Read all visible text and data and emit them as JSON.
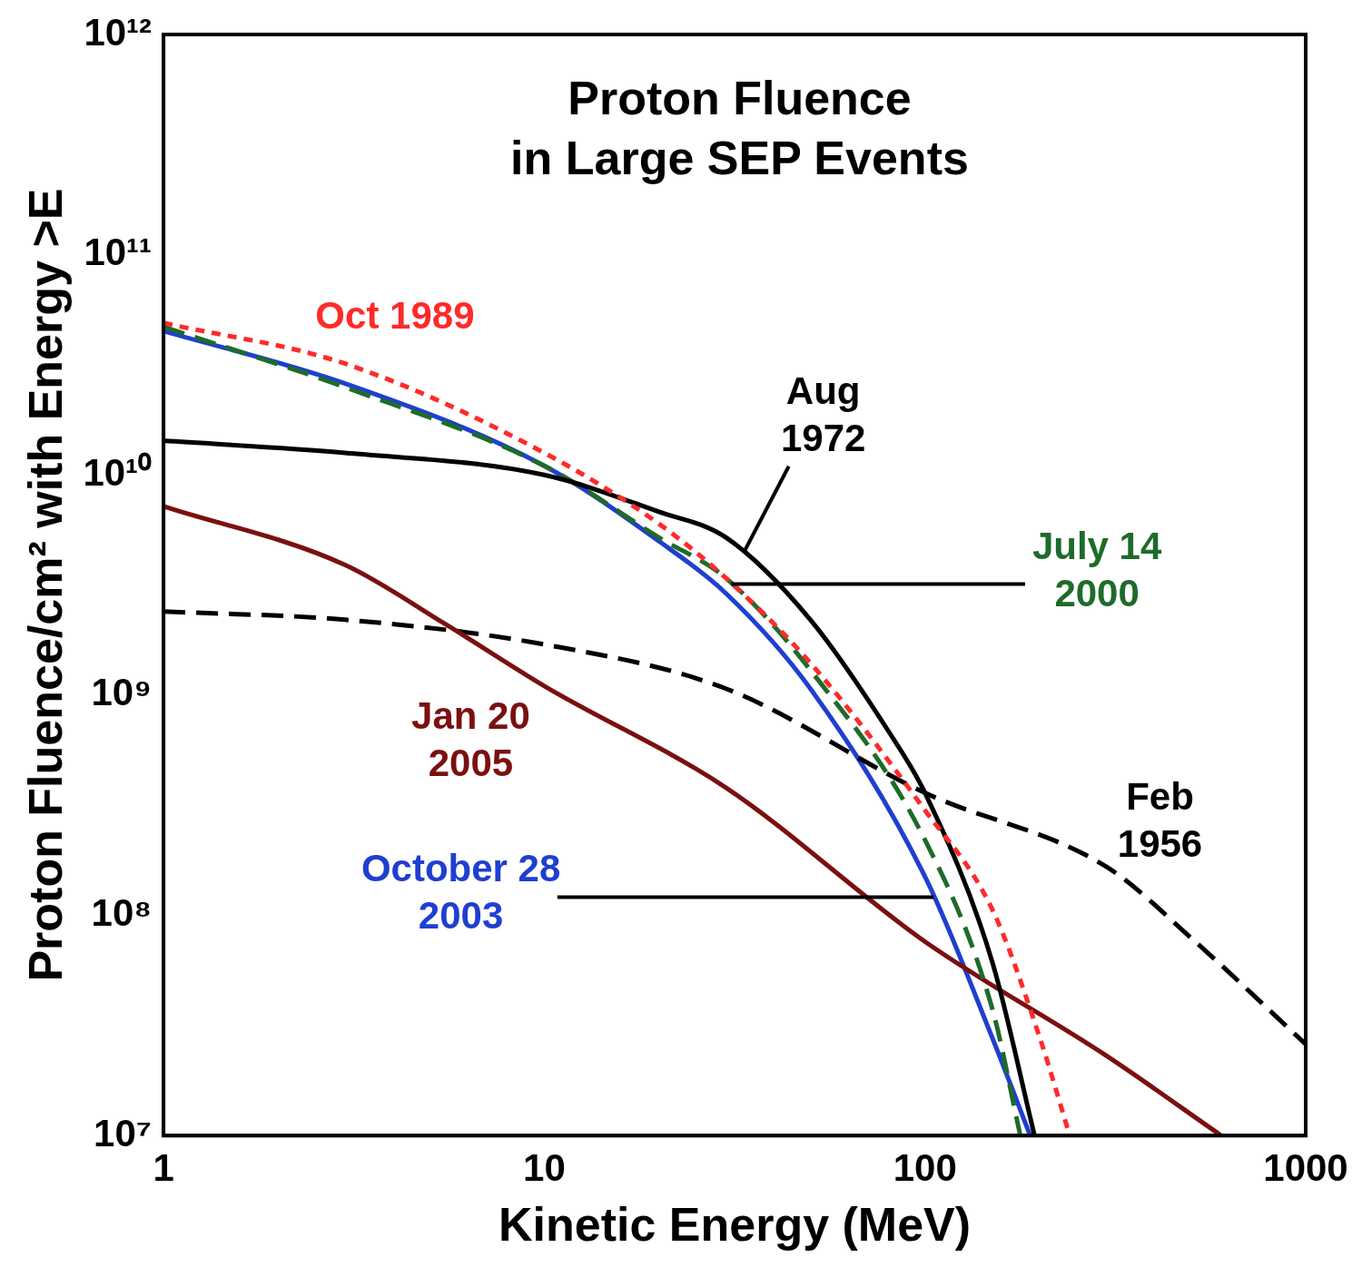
{
  "chart_data": {
    "type": "line",
    "title": "Proton Fluence\nin Large SEP Events",
    "xlabel": "Kinetic Energy (MeV)",
    "ylabel": "Proton Fluence/cm² with Energy >E",
    "log": "xy",
    "grid": false,
    "legend": false,
    "marker": "none",
    "xlim": [
      1,
      1000
    ],
    "ylim": [
      10000000,
      1000000000000
    ],
    "xticks": [
      1,
      10,
      100,
      1000
    ],
    "yticks": [
      {
        "value": 10000000,
        "label": "10⁷"
      },
      {
        "value": 100000000,
        "label": "10⁸"
      },
      {
        "value": 1000000000,
        "label": "10⁹"
      },
      {
        "value": 10000000000,
        "label": "10¹⁰"
      },
      {
        "value": 100000000000,
        "label": "10¹¹"
      },
      {
        "value": 1000000000000,
        "label": "10¹²"
      }
    ],
    "series": [
      {
        "name": "Oct 1989",
        "color": "#ff2a2a",
        "line_style": "dotted",
        "x": [
          1,
          3,
          10,
          20,
          30,
          50,
          100,
          150,
          200,
          240
        ],
        "values": [
          49000000000,
          32000000000,
          12600000000,
          6000000000,
          3400000000,
          1400000000,
          300000000,
          107000000,
          28000000,
          10000000
        ]
      },
      {
        "name": "Aug\n1972",
        "color": "#000000",
        "line_style": "solid",
        "x": [
          1,
          3,
          10,
          20,
          30,
          50,
          80,
          100,
          150,
          194
        ],
        "values": [
          14300000000,
          12600000000,
          10000000000,
          6800000000,
          5200000000,
          2200000000,
          690000000,
          360000000,
          62000000,
          10000000
        ]
      },
      {
        "name": "July 14\n2000",
        "color": "#1e6b2a",
        "line_style": "dashed",
        "x": [
          1,
          3,
          10,
          20,
          30,
          50,
          100,
          150,
          178
        ],
        "values": [
          47000000000,
          25000000000,
          11000000000,
          5200000000,
          3400000000,
          1300000000,
          220000000,
          38000000,
          10000000
        ]
      },
      {
        "name": "Jan 20\n2005",
        "color": "#7a1010",
        "line_style": "solid",
        "x": [
          1,
          3,
          5.5,
          10,
          30,
          100,
          300,
          600
        ],
        "values": [
          7200000000,
          3900000000,
          2100000000,
          1100000000,
          380000000,
          76000000,
          23000000,
          10000000
        ]
      },
      {
        "name": "Feb\n1956",
        "color": "#000000",
        "line_style": "dashed",
        "x": [
          1,
          3,
          10,
          30,
          100,
          300,
          500,
          1000
        ],
        "values": [
          2400000000,
          2200000000,
          1700000000,
          1070000000,
          360000000,
          166000000,
          79000000,
          26000000
        ]
      },
      {
        "name": "October 28\n2003",
        "color": "#1f3fd0",
        "line_style": "solid",
        "x": [
          1,
          3,
          10,
          20,
          30,
          50,
          100,
          150,
          189
        ],
        "values": [
          45000000000,
          26000000000,
          11000000000,
          5000000000,
          2900000000,
          1070000000,
          150000000,
          28000000,
          10000000
        ]
      }
    ]
  }
}
